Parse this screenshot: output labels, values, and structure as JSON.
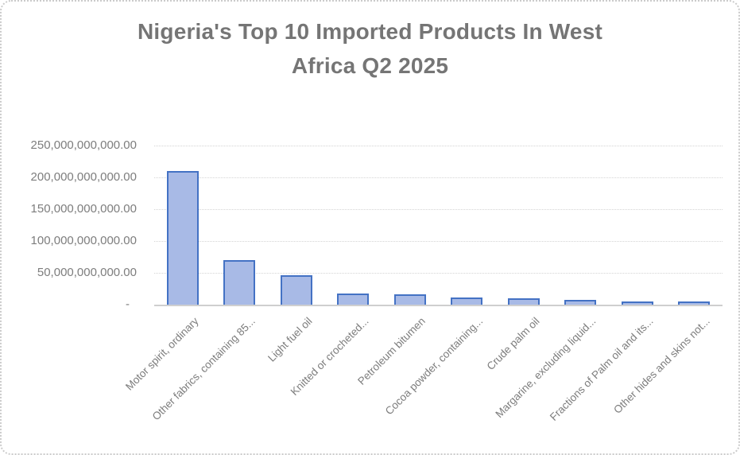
{
  "chart": {
    "title": "Nigeria's Top 10 Imported Products In West Africa Q2 2025",
    "title_lines": [
      "Nigeria's Top 10 Imported Products In West",
      "Africa Q2 2025"
    ]
  },
  "chart_data": {
    "type": "bar",
    "title": "Nigeria's Top 10 Imported Products In West Africa Q2 2025",
    "xlabel": "",
    "ylabel": "",
    "categories": [
      "Motor spirit, ordinary",
      "Other fabrics, containing 85...",
      "Light fuel oil",
      "Knitted or crocheted...",
      "Petroleum bitumen",
      "Cocoa powder, containing...",
      "Crude palm oil",
      "Margarine, excluding liquid...",
      "Fractions of Palm oil and its...",
      "Other hides and skins not..."
    ],
    "values": [
      210000000000,
      70000000000,
      46000000000,
      17000000000,
      16500000000,
      11000000000,
      10000000000,
      7000000000,
      5000000000,
      5000000000
    ],
    "ylim": [
      0,
      250000000000
    ],
    "y_tick_step": 50000000000,
    "y_tick_values": [
      250000000000,
      200000000000,
      150000000000,
      100000000000,
      50000000000,
      0
    ],
    "y_tick_labels": [
      "250,000,000,000.00",
      "200,000,000,000.00",
      "150,000,000,000.00",
      "100,000,000,000.00",
      "50,000,000,000.00",
      "-"
    ],
    "grid": true,
    "legend": false,
    "colors": {
      "bar_fill": "#a8bae6",
      "bar_border": "#4472c4",
      "title_text": "#757575",
      "axis_text": "#7d7d7d",
      "gridline": "#d4d4d4",
      "axis_line": "#cfcfcf",
      "frame_border": "#cbcbcb",
      "background": "#ffffff"
    }
  }
}
